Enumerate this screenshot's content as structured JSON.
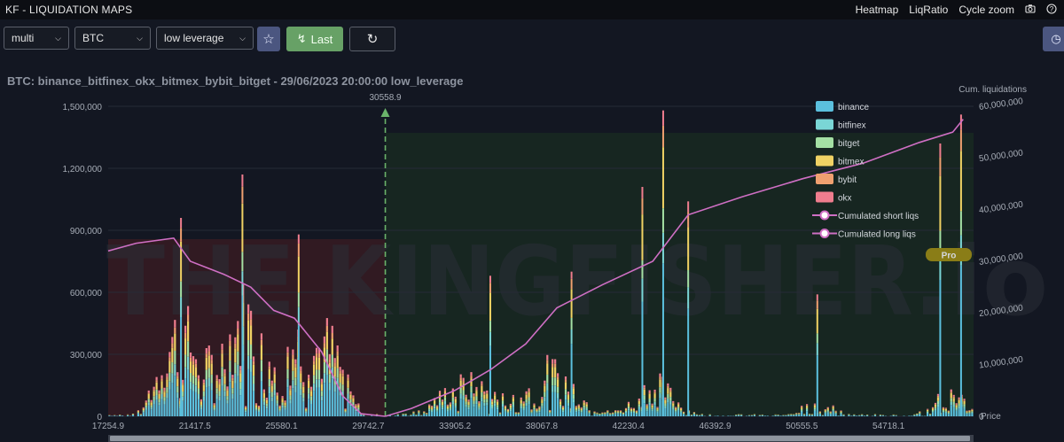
{
  "app": {
    "title": "KF - LIQUIDATION MAPS"
  },
  "nav": {
    "heatmap": "Heatmap",
    "liqratio": "LiqRatio",
    "cycle_zoom": "Cycle zoom",
    "camera_icon": "camera-icon",
    "help_icon": "help-icon"
  },
  "toolbar": {
    "mode": "multi",
    "asset": "BTC",
    "leverage": "low leverage",
    "last_label": "Last",
    "star_icon": "star-icon",
    "bolt_icon": "bolt-icon",
    "refresh_icon": "refresh-icon",
    "clock_icon": "clock-icon"
  },
  "chart_data": {
    "type": "bar",
    "title": "BTC: binance_bitfinex_okx_bitmex_bybit_bitget - 29/06/2023 20:00:00 low_leverage",
    "current_price_label": "30558.9",
    "current_price": 30558.9,
    "y_left": {
      "ticks": [
        0,
        300000,
        600000,
        900000,
        1200000,
        1500000
      ],
      "tick_labels": [
        "0",
        "300,000",
        "600,000",
        "900,000",
        "1,200,000",
        "1,500,000"
      ],
      "range": [
        0,
        1500000
      ]
    },
    "y_right": {
      "label": "Cum. liquidations",
      "ticks": [
        0,
        10000000,
        20000000,
        30000000,
        40000000,
        50000000,
        60000000
      ],
      "tick_labels": [
        "0",
        "10,000,000",
        "20,000,000",
        "30,000,000",
        "40,000,000",
        "50,000,000",
        "60,000,000"
      ],
      "range": [
        0,
        60000000
      ]
    },
    "x": {
      "label": "Price",
      "range": [
        17254.9,
        58800
      ],
      "tick_labels": [
        "17254.9",
        "21417.5",
        "25580.1",
        "29742.7",
        "33905.2",
        "38067.8",
        "42230.4",
        "46392.9",
        "50555.5",
        "54718.1"
      ],
      "ticks": [
        17254.9,
        21417.5,
        25580.1,
        29742.7,
        33905.2,
        38067.8,
        42230.4,
        46392.9,
        50555.5,
        54718.1
      ]
    },
    "legend": [
      "binance",
      "bitfinex",
      "bitget",
      "bitmex",
      "bybit",
      "okx",
      "Cumulated short liqs",
      "Cumulated long liqs"
    ],
    "legend_placement": "top-right",
    "colors": {
      "binance": "#5bc0de",
      "bitfinex": "#7ad6d6",
      "bitget": "#a4e0a4",
      "bitmex": "#f0d264",
      "bybit": "#f0a070",
      "okx": "#ef7d8e",
      "cumulative": "#cf6fc4"
    },
    "badge": "Pro",
    "watermark": "THE KINGFISHER",
    "watermark_suffix": ".io",
    "notable_bars": [
      {
        "price": 20750,
        "total": 960000
      },
      {
        "price": 23700,
        "total": 1170000
      },
      {
        "price": 26400,
        "total": 880000
      },
      {
        "price": 35600,
        "total": 680000
      },
      {
        "price": 39500,
        "total": 700000
      },
      {
        "price": 42900,
        "total": 1110000
      },
      {
        "price": 43900,
        "total": 1480000
      },
      {
        "price": 45100,
        "total": 1040000
      },
      {
        "price": 51300,
        "total": 590000
      },
      {
        "price": 57200,
        "total": 1320000
      },
      {
        "price": 58200,
        "total": 1460000
      }
    ],
    "cumulative_long": [
      {
        "price": 17254.9,
        "value": 32000000
      },
      {
        "price": 18600,
        "value": 33500000
      },
      {
        "price": 20400,
        "value": 34500000
      },
      {
        "price": 21200,
        "value": 30000000
      },
      {
        "price": 22800,
        "value": 27500000
      },
      {
        "price": 24100,
        "value": 25000000
      },
      {
        "price": 25200,
        "value": 20500000
      },
      {
        "price": 26200,
        "value": 19000000
      },
      {
        "price": 27500,
        "value": 12500000
      },
      {
        "price": 28500,
        "value": 4000000
      },
      {
        "price": 29400,
        "value": 500000
      },
      {
        "price": 30558.9,
        "value": 0
      }
    ],
    "cumulative_short": [
      {
        "price": 30558.9,
        "value": 0
      },
      {
        "price": 31800,
        "value": 1500000
      },
      {
        "price": 33900,
        "value": 5000000
      },
      {
        "price": 35600,
        "value": 9000000
      },
      {
        "price": 37300,
        "value": 14000000
      },
      {
        "price": 38800,
        "value": 21000000
      },
      {
        "price": 41000,
        "value": 25500000
      },
      {
        "price": 43400,
        "value": 30000000
      },
      {
        "price": 45100,
        "value": 39000000
      },
      {
        "price": 47700,
        "value": 42500000
      },
      {
        "price": 50600,
        "value": 46000000
      },
      {
        "price": 53500,
        "value": 49000000
      },
      {
        "price": 56200,
        "value": 53000000
      },
      {
        "price": 57800,
        "value": 55000000
      },
      {
        "price": 58300,
        "value": 57500000
      }
    ]
  }
}
